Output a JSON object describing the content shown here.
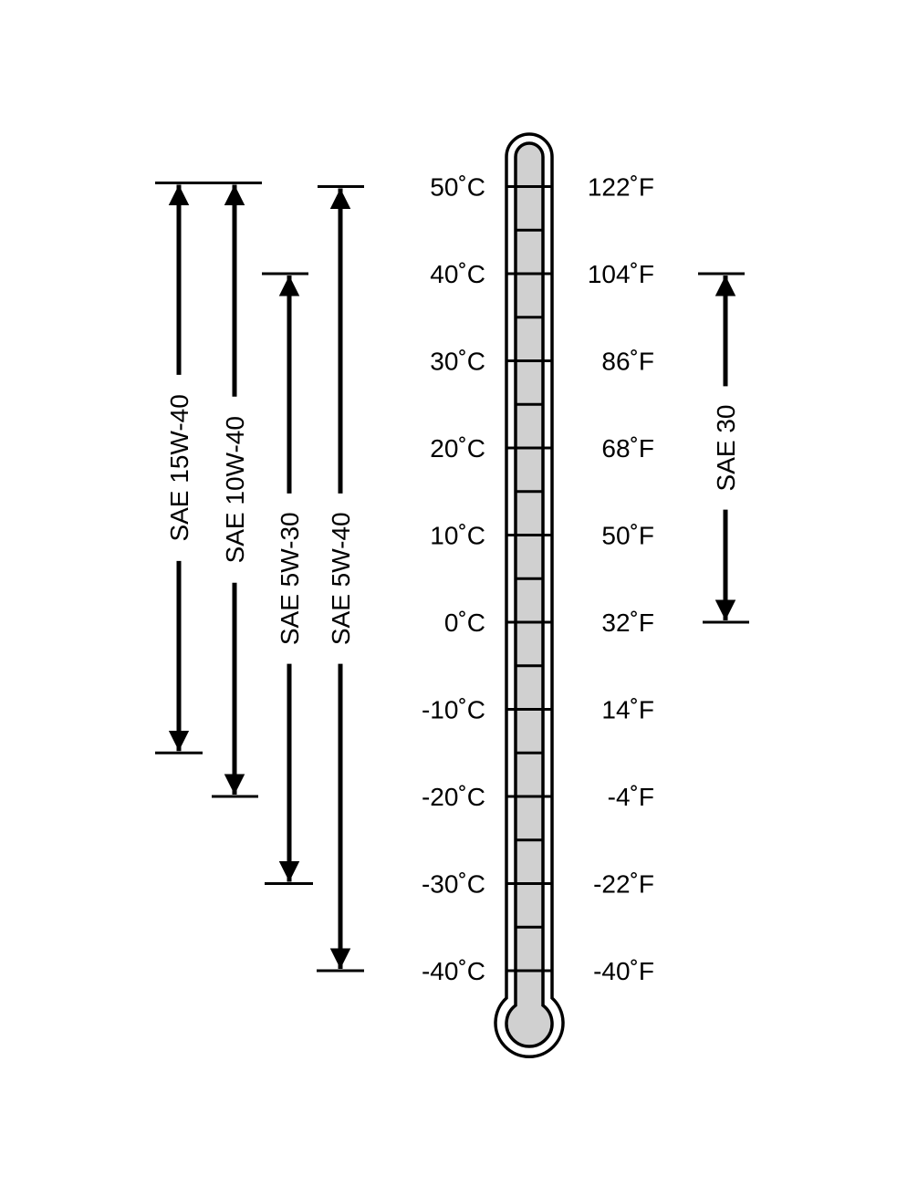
{
  "celsius_labels": [
    "50˚C",
    "40˚C",
    "30˚C",
    "20˚C",
    "10˚C",
    "0˚C",
    "-10˚C",
    "-20˚C",
    "-30˚C",
    "-40˚C"
  ],
  "fahrenheit_labels": [
    "122˚F",
    "104˚F",
    "86˚F",
    "68˚F",
    "50˚F",
    "32˚F",
    "14˚F",
    "-4˚F",
    "-22˚F",
    "-40˚F"
  ],
  "celsius_values": [
    50,
    40,
    30,
    20,
    10,
    0,
    -10,
    -20,
    -30,
    -40
  ],
  "ranges": [
    {
      "label": "SAE 15W-40",
      "min_c": -15,
      "max_c": 50
    },
    {
      "label": "SAE 10W-40",
      "min_c": -20,
      "max_c": 50
    },
    {
      "label": "SAE 5W-30",
      "min_c": -30,
      "max_c": 40
    },
    {
      "label": "SAE 5W-40",
      "min_c": -40,
      "max_c": 50
    },
    {
      "label": "SAE 30",
      "min_c": 0,
      "max_c": 40
    }
  ],
  "colors": {
    "fill": "#d0d0d0",
    "line": "#000000"
  }
}
